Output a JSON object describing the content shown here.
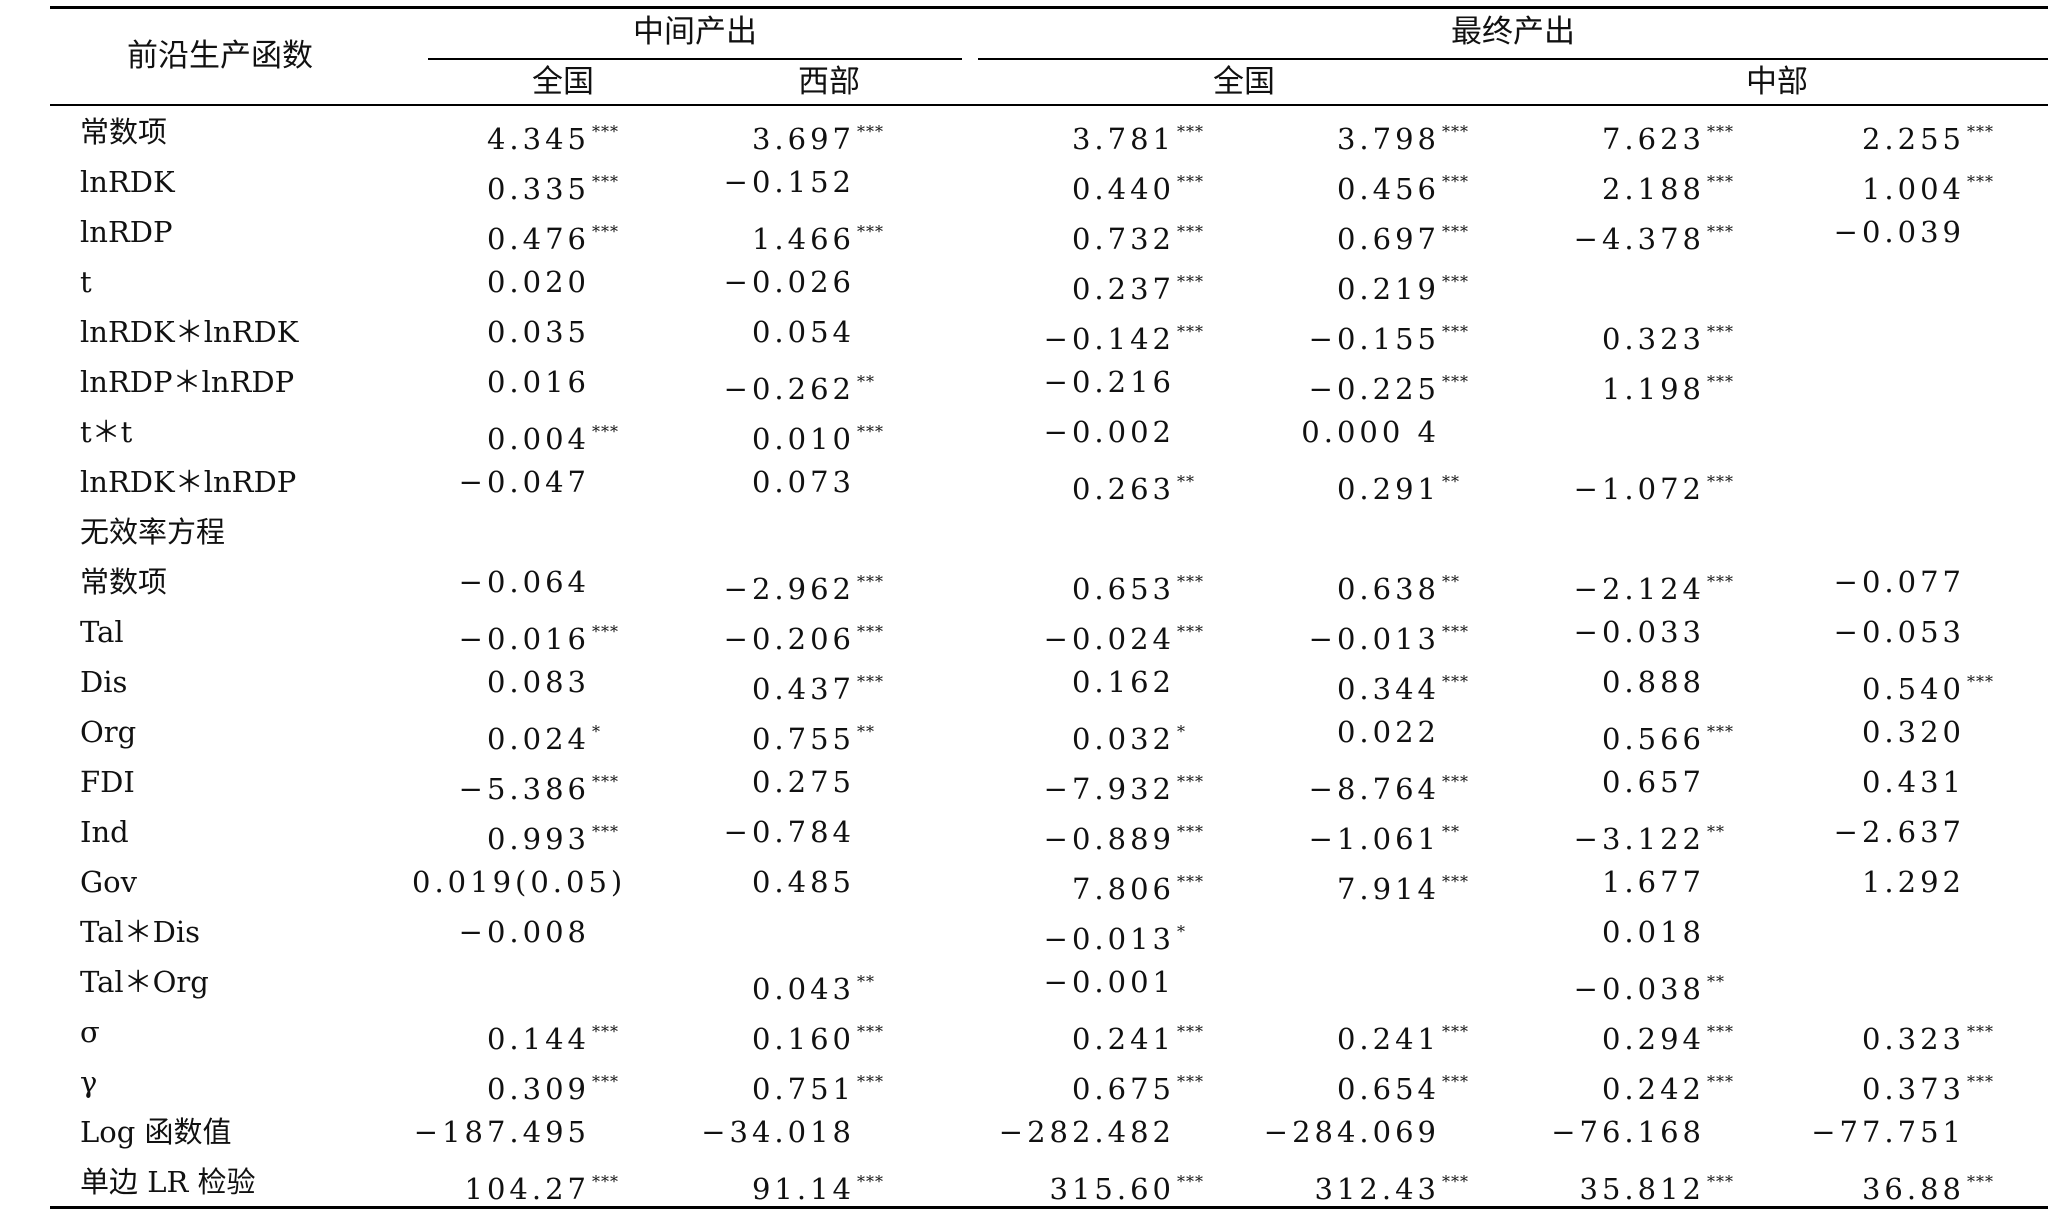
{
  "header": {
    "corner": "前沿生产函数",
    "group1": "中间产出",
    "group2": "最终产出",
    "subs": [
      "全国",
      "西部",
      "全国",
      "中部"
    ]
  },
  "rows": [
    {
      "label": "常数项",
      "cells": [
        [
          "4.345",
          "***"
        ],
        [
          "3.697",
          "***"
        ],
        [
          "3.781",
          "***"
        ],
        [
          "3.798",
          "***"
        ],
        [
          "7.623",
          "***"
        ],
        [
          "2.255",
          "***"
        ]
      ]
    },
    {
      "label": "lnRDK",
      "cells": [
        [
          "0.335",
          "***"
        ],
        [
          "−0.152",
          ""
        ],
        [
          "0.440",
          "***"
        ],
        [
          "0.456",
          "***"
        ],
        [
          "2.188",
          "***"
        ],
        [
          "1.004",
          "***"
        ]
      ]
    },
    {
      "label": "lnRDP",
      "cells": [
        [
          "0.476",
          "***"
        ],
        [
          "1.466",
          "***"
        ],
        [
          "0.732",
          "***"
        ],
        [
          "0.697",
          "***"
        ],
        [
          "−4.378",
          "***"
        ],
        [
          "−0.039",
          ""
        ]
      ]
    },
    {
      "label": "t",
      "cells": [
        [
          "0.020",
          ""
        ],
        [
          "−0.026",
          ""
        ],
        [
          "0.237",
          "***"
        ],
        [
          "0.219",
          "***"
        ],
        [
          "",
          ""
        ],
        [
          "",
          ""
        ]
      ]
    },
    {
      "label": "lnRDK＊lnRDK",
      "cells": [
        [
          "0.035",
          ""
        ],
        [
          "0.054",
          ""
        ],
        [
          "−0.142",
          "***"
        ],
        [
          "−0.155",
          "***"
        ],
        [
          "0.323",
          "***"
        ],
        [
          "",
          ""
        ]
      ]
    },
    {
      "label": "lnRDP＊lnRDP",
      "cells": [
        [
          "0.016",
          ""
        ],
        [
          "−0.262",
          "**"
        ],
        [
          "−0.216",
          ""
        ],
        [
          "−0.225",
          "***"
        ],
        [
          "1.198",
          "***"
        ],
        [
          "",
          ""
        ]
      ]
    },
    {
      "label": "t＊t",
      "cells": [
        [
          "0.004",
          "***"
        ],
        [
          "0.010",
          "***"
        ],
        [
          "−0.002",
          ""
        ],
        [
          "0.000 4",
          ""
        ],
        [
          "",
          ""
        ],
        [
          "",
          ""
        ]
      ]
    },
    {
      "label": "lnRDK＊lnRDP",
      "cells": [
        [
          "−0.047",
          ""
        ],
        [
          "0.073",
          ""
        ],
        [
          "0.263",
          "**"
        ],
        [
          "0.291",
          "**"
        ],
        [
          "−1.072",
          "***"
        ],
        [
          "",
          ""
        ]
      ]
    },
    {
      "label": "无效率方程",
      "cells": [
        [
          "",
          ""
        ],
        [
          "",
          ""
        ],
        [
          "",
          ""
        ],
        [
          "",
          ""
        ],
        [
          "",
          ""
        ],
        [
          "",
          ""
        ]
      ]
    },
    {
      "label": "常数项",
      "cells": [
        [
          "−0.064",
          ""
        ],
        [
          "−2.962",
          "***"
        ],
        [
          "0.653",
          "***"
        ],
        [
          "0.638",
          "**"
        ],
        [
          "−2.124",
          "***"
        ],
        [
          "−0.077",
          ""
        ]
      ]
    },
    {
      "label": "Tal",
      "cells": [
        [
          "−0.016",
          "***"
        ],
        [
          "−0.206",
          "***"
        ],
        [
          "−0.024",
          "***"
        ],
        [
          "−0.013",
          "***"
        ],
        [
          "−0.033",
          ""
        ],
        [
          "−0.053",
          ""
        ]
      ]
    },
    {
      "label": "Dis",
      "cells": [
        [
          "0.083",
          ""
        ],
        [
          "0.437",
          "***"
        ],
        [
          "0.162",
          ""
        ],
        [
          "0.344",
          "***"
        ],
        [
          "0.888",
          ""
        ],
        [
          "0.540",
          "***"
        ]
      ]
    },
    {
      "label": "Org",
      "cells": [
        [
          "0.024",
          "*"
        ],
        [
          "0.755",
          "**"
        ],
        [
          "0.032",
          "*"
        ],
        [
          "0.022",
          ""
        ],
        [
          "0.566",
          "***"
        ],
        [
          "0.320",
          ""
        ]
      ]
    },
    {
      "label": "FDI",
      "cells": [
        [
          "−5.386",
          "***"
        ],
        [
          "0.275",
          ""
        ],
        [
          "−7.932",
          "***"
        ],
        [
          "−8.764",
          "***"
        ],
        [
          "0.657",
          ""
        ],
        [
          "0.431",
          ""
        ]
      ]
    },
    {
      "label": "Ind",
      "cells": [
        [
          "0.993",
          "***"
        ],
        [
          "−0.784",
          ""
        ],
        [
          "−0.889",
          "***"
        ],
        [
          "−1.061",
          "**"
        ],
        [
          "−3.122",
          "**"
        ],
        [
          "−2.637",
          ""
        ]
      ]
    },
    {
      "label": "Gov",
      "cells": [
        [
          "0.019(0.05)",
          ""
        ],
        [
          "0.485",
          ""
        ],
        [
          "7.806",
          "***"
        ],
        [
          "7.914",
          "***"
        ],
        [
          "1.677",
          ""
        ],
        [
          "1.292",
          ""
        ]
      ]
    },
    {
      "label": "Tal＊Dis",
      "cells": [
        [
          "−0.008",
          ""
        ],
        [
          "",
          ""
        ],
        [
          "−0.013",
          "*"
        ],
        [
          "",
          ""
        ],
        [
          "0.018",
          ""
        ],
        [
          "",
          ""
        ]
      ]
    },
    {
      "label": "Tal＊Org",
      "cells": [
        [
          "",
          ""
        ],
        [
          "0.043",
          "**"
        ],
        [
          "−0.001",
          ""
        ],
        [
          "",
          ""
        ],
        [
          "−0.038",
          "**"
        ],
        [
          "",
          ""
        ]
      ]
    },
    {
      "label": "σ",
      "cells": [
        [
          "0.144",
          "***"
        ],
        [
          "0.160",
          "***"
        ],
        [
          "0.241",
          "***"
        ],
        [
          "0.241",
          "***"
        ],
        [
          "0.294",
          "***"
        ],
        [
          "0.323",
          "***"
        ]
      ]
    },
    {
      "label": "γ",
      "cells": [
        [
          "0.309",
          "***"
        ],
        [
          "0.751",
          "***"
        ],
        [
          "0.675",
          "***"
        ],
        [
          "0.654",
          "***"
        ],
        [
          "0.242",
          "***"
        ],
        [
          "0.373",
          "***"
        ]
      ]
    },
    {
      "label": "Log 函数值",
      "cells": [
        [
          "−187.495",
          ""
        ],
        [
          "−34.018",
          ""
        ],
        [
          "−282.482",
          ""
        ],
        [
          "−284.069",
          ""
        ],
        [
          "−76.168",
          ""
        ],
        [
          "−77.751",
          ""
        ]
      ]
    },
    {
      "label": "单边 LR 检验",
      "cells": [
        [
          "104.27",
          "***"
        ],
        [
          "91.14",
          "***"
        ],
        [
          "315.60",
          "***"
        ],
        [
          "312.43",
          "***"
        ],
        [
          "35.812",
          "***"
        ],
        [
          "36.88",
          "***"
        ]
      ]
    }
  ]
}
